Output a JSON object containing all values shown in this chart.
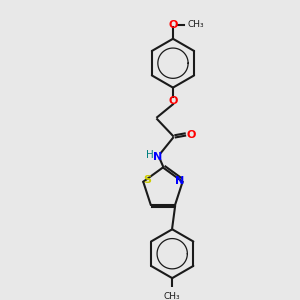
{
  "background_color": "#e8e8e8",
  "bond_color": "#1a1a1a",
  "atom_colors": {
    "O": "#ff0000",
    "N": "#0000ff",
    "S": "#cccc00",
    "C": "#1a1a1a",
    "H": "#008080"
  },
  "figsize": [
    3.0,
    3.0
  ],
  "dpi": 100,
  "methoxy_label": "O",
  "methyl_label": "CH₃",
  "carbonyl_O": "O",
  "NH_label": "H",
  "N_label": "N",
  "S_label": "S"
}
